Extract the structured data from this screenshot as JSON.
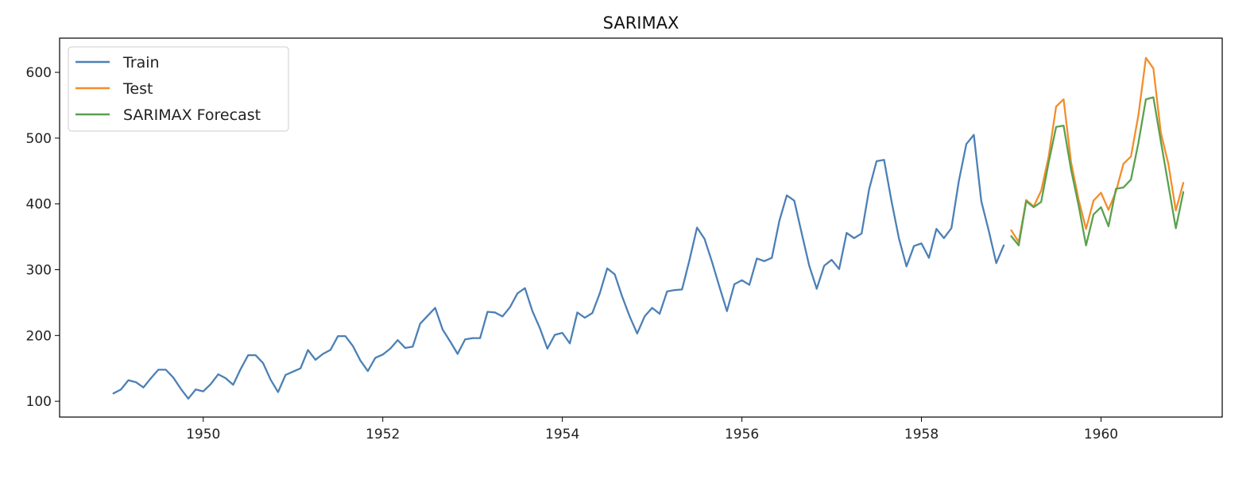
{
  "chart_data": {
    "type": "line",
    "title": "SARIMAX",
    "xlabel": "",
    "ylabel": "",
    "xlim": [
      1948.4,
      1961.35
    ],
    "ylim": [
      76,
      652
    ],
    "grid": false,
    "legend_position": "top-left",
    "x_ticks": [
      1950,
      1952,
      1954,
      1956,
      1958,
      1960
    ],
    "x_tick_labels": [
      "1950",
      "1952",
      "1954",
      "1956",
      "1958",
      "1960"
    ],
    "y_ticks": [
      100,
      200,
      300,
      400,
      500,
      600
    ],
    "y_tick_labels": [
      "100",
      "200",
      "300",
      "400",
      "500",
      "600"
    ],
    "series": [
      {
        "name": "Train",
        "color": "#4c80b6",
        "start": 1949.0,
        "step": 0.08333333,
        "values": [
          112,
          118,
          132,
          129,
          121,
          135,
          148,
          148,
          136,
          119,
          104,
          118,
          115,
          126,
          141,
          135,
          125,
          149,
          170,
          170,
          158,
          133,
          114,
          140,
          145,
          150,
          178,
          163,
          172,
          178,
          199,
          199,
          184,
          162,
          146,
          166,
          171,
          180,
          193,
          181,
          183,
          218,
          230,
          242,
          209,
          191,
          172,
          194,
          196,
          196,
          236,
          235,
          229,
          243,
          264,
          272,
          237,
          211,
          180,
          201,
          204,
          188,
          235,
          227,
          234,
          264,
          302,
          293,
          259,
          229,
          203,
          229,
          242,
          233,
          267,
          269,
          270,
          315,
          364,
          347,
          312,
          274,
          237,
          278,
          284,
          277,
          317,
          313,
          318,
          374,
          413,
          405,
          355,
          306,
          271,
          306,
          315,
          301,
          356,
          348,
          355,
          422,
          465,
          467,
          404,
          347,
          305,
          336,
          340,
          318,
          362,
          348,
          363,
          435,
          491,
          505,
          404,
          359,
          310,
          337
        ]
      },
      {
        "name": "Test",
        "color": "#f28e2b",
        "start": 1959.0,
        "step": 0.08333333,
        "values": [
          360,
          342,
          406,
          396,
          420,
          472,
          548,
          559,
          463,
          407,
          362,
          405,
          417,
          391,
          419,
          461,
          472,
          535,
          622,
          606,
          508,
          461,
          390,
          432
        ]
      },
      {
        "name": "SARIMAX Forecast",
        "color": "#59a14f",
        "start": 1959.0,
        "step": 0.08333333,
        "values": [
          351,
          337,
          404,
          395,
          403,
          463,
          517,
          519,
          452,
          398,
          337,
          384,
          395,
          366,
          423,
          425,
          437,
          493,
          559,
          562,
          495,
          429,
          363,
          418
        ]
      }
    ]
  }
}
